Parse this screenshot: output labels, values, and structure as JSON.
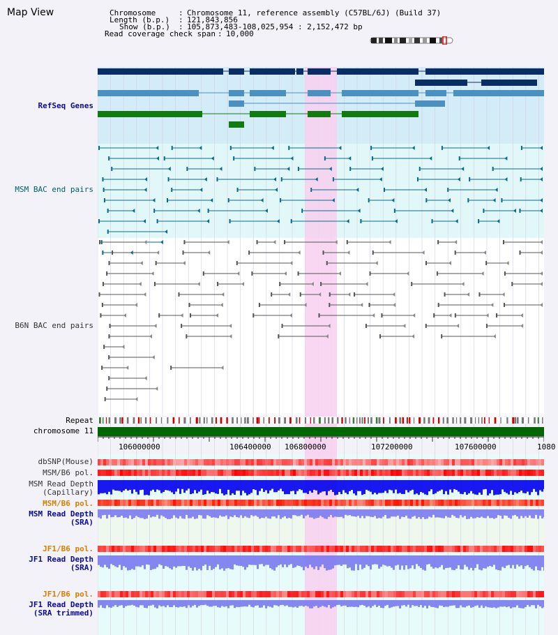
{
  "view": {
    "title": "Map View",
    "chromosome_label": "Chromosome",
    "chromosome_value": "Chromosome 11, reference assembly (C57BL/6J) (Build 37)",
    "length_label": "Length (b.p.)",
    "length_value": "121,843,856",
    "show_label": "Show (b.p.)",
    "show_value": "105,873,483-108,025,954 : 2,152,472 bp",
    "coverage_label": "Read coverage check span",
    "coverage_value": "10,000"
  },
  "tracks": {
    "refseq": "RefSeq Genes",
    "msm_bac": "MSM BAC end pairs",
    "b6n_bac": "B6N BAC end pairs",
    "repeat": "Repeat",
    "chromosome": "chromosome 11",
    "dbsnp": "dbSNP(Mouse)",
    "msm_b6_pol_1": "MSM/B6 pol.",
    "msm_read_depth_cap_1": "MSM Read Depth",
    "msm_read_depth_cap_2": "(Capillary)",
    "msm_b6_pol_2": "MSM/B6 pol.",
    "msm_read_depth_sra_1": "MSM Read Depth",
    "msm_read_depth_sra_2": "(SRA)",
    "jf1_b6_pol_1": "JF1/B6 pol.",
    "jf1_read_depth_sra_1": "JF1 Read Depth",
    "jf1_read_depth_sra_2": "(SRA)",
    "jf1_b6_pol_2": "JF1/B6 pol.",
    "jf1_read_depth_trim_1": "JF1 Read Depth",
    "jf1_read_depth_trim_2": "(SRA trimmed)"
  },
  "axis": {
    "ticks": [
      "106000000",
      "106400000",
      "106800000",
      "107200000",
      "107600000",
      "1080"
    ]
  },
  "colors": {
    "refseq_dark": "#0a2d66",
    "refseq_mid": "#4a90c0",
    "refseq_green": "#117a11",
    "msm_bac": "#0a6a8a",
    "b6n_bac": "#555555",
    "chromosome": "#006600",
    "highlight": "#f8d0f0",
    "depth_blue": "#0000ee",
    "depth_violet": "#7a7af0"
  }
}
